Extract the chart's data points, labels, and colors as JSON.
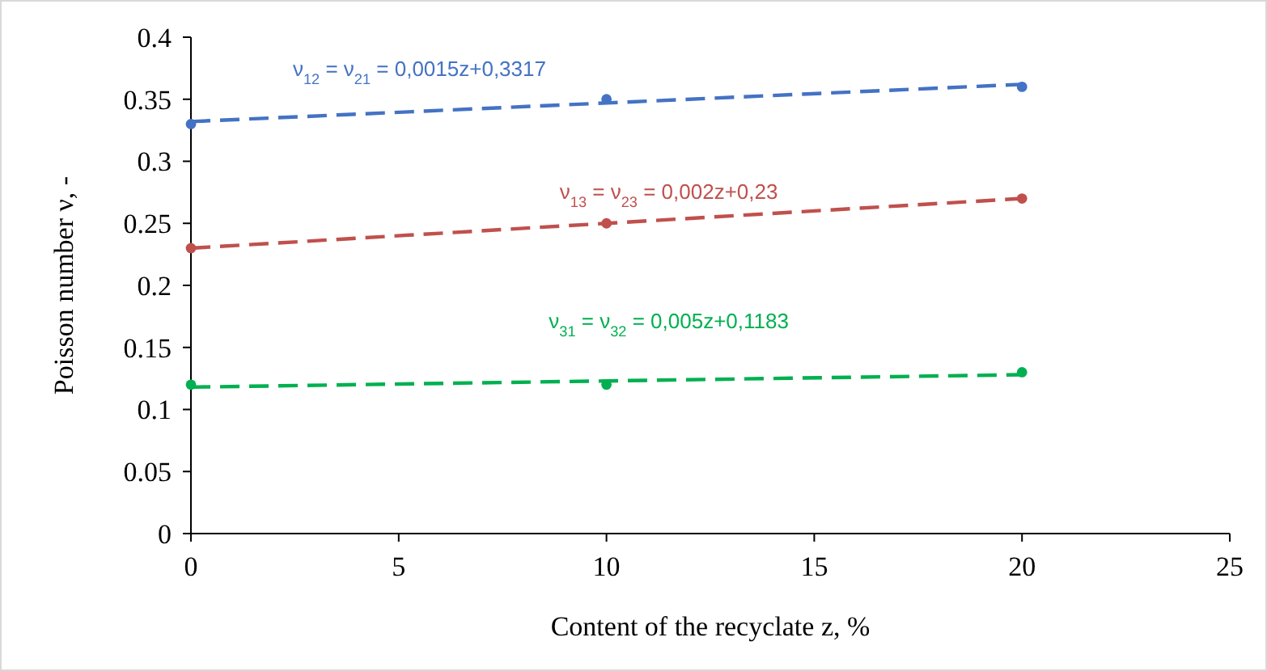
{
  "chart_data": {
    "type": "scatter",
    "xlabel": "Content of the recyclate  z, %",
    "ylabel": "Poisson number ν, -",
    "x": [
      0,
      10,
      20
    ],
    "xlim": [
      0,
      25
    ],
    "xticks": [
      0,
      5,
      10,
      15,
      20,
      25
    ],
    "ylim": [
      0,
      0.4
    ],
    "yticks": [
      0,
      0.05,
      0.1,
      0.15,
      0.2,
      0.25,
      0.3,
      0.35,
      0.4
    ],
    "grid": false,
    "legend": false,
    "marker": "circle",
    "series": [
      {
        "color": "#4472c4",
        "values": [
          0.33,
          0.35,
          0.36
        ]
      },
      {
        "color": "#c0504d",
        "values": [
          0.23,
          0.25,
          0.27
        ]
      },
      {
        "color": "#00b050",
        "values": [
          0.12,
          0.12,
          0.13
        ]
      },
      {
        "type": "line",
        "name": "ν$_{12}$ = ν$_{21}$ = 0,0015z+0,3317",
        "color": "#4472c4",
        "values": [
          0.332,
          0.347,
          0.362
        ],
        "marker": "none",
        "line_style": "dashed"
      },
      {
        "type": "line",
        "name": "ν$_{13}$ = ν$_{23}$ = 0,002z+0,23",
        "color": "#c0504d",
        "values": [
          0.23,
          0.25,
          0.27
        ],
        "marker": "none",
        "line_style": "dashed"
      },
      {
        "type": "line",
        "name": "ν$_{31}$ = ν$_{32}$ = 0,005z+0,1183",
        "color": "#00b050",
        "values": [
          0.118,
          0.123,
          0.128
        ],
        "marker": "none",
        "line_style": "dashed"
      }
    ]
  }
}
